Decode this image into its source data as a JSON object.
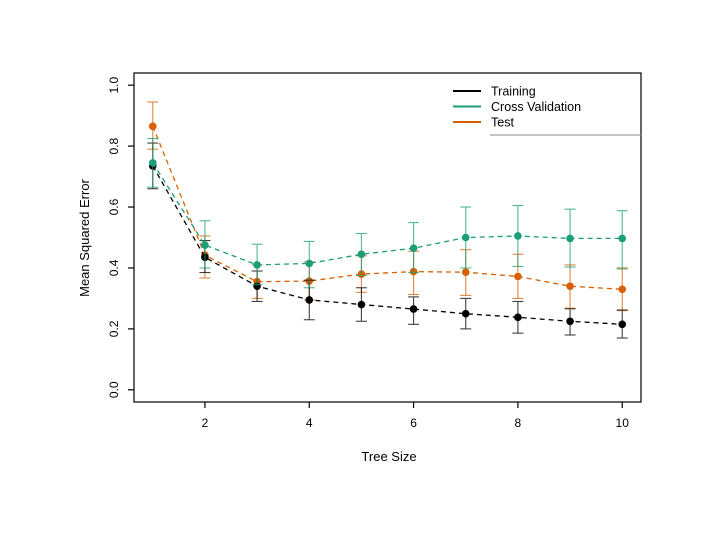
{
  "chart_data": {
    "type": "line",
    "title": "",
    "xlabel": "Tree Size",
    "ylabel": "Mean Squared Error",
    "x": [
      1,
      2,
      3,
      4,
      5,
      6,
      7,
      8,
      9,
      10
    ],
    "xticks": [
      "2",
      "4",
      "6",
      "8",
      "10"
    ],
    "xtick_values": [
      2,
      4,
      6,
      8,
      10
    ],
    "yticks": [
      "0.0",
      "0.2",
      "0.4",
      "0.6",
      "0.8",
      "1.0"
    ],
    "ytick_values": [
      0.0,
      0.2,
      0.4,
      0.6,
      0.8,
      1.0
    ],
    "xlim": [
      0.64,
      10.36
    ],
    "ylim": [
      -0.04,
      1.04
    ],
    "grid": false,
    "legend_position": "top-right",
    "line_style": "dashed",
    "marker": "filled-circle",
    "error_bars": true,
    "series": [
      {
        "name": "Test",
        "color": "#D95F02",
        "values": [
          0.865,
          0.442,
          0.355,
          0.357,
          0.38,
          0.388,
          0.386,
          0.372,
          0.34,
          0.33
        ],
        "err_lo": [
          0.79,
          0.367,
          0.3,
          0.295,
          0.32,
          0.313,
          0.31,
          0.3,
          0.268,
          0.26
        ],
        "err_hi": [
          0.945,
          0.505,
          0.41,
          0.42,
          0.44,
          0.455,
          0.46,
          0.445,
          0.41,
          0.4
        ]
      },
      {
        "name": "Training",
        "color": "#000000",
        "values": [
          0.735,
          0.435,
          0.34,
          0.295,
          0.28,
          0.265,
          0.25,
          0.238,
          0.225,
          0.215
        ],
        "err_lo": [
          0.66,
          0.385,
          0.29,
          0.23,
          0.225,
          0.215,
          0.2,
          0.186,
          0.18,
          0.17
        ],
        "err_hi": [
          0.81,
          0.49,
          0.39,
          0.36,
          0.335,
          0.305,
          0.3,
          0.29,
          0.266,
          0.262
        ]
      },
      {
        "name": "Cross Validation",
        "color": "#1B9E77",
        "values": [
          0.745,
          0.475,
          0.41,
          0.415,
          0.445,
          0.465,
          0.5,
          0.505,
          0.497,
          0.497
        ],
        "err_lo": [
          0.665,
          0.4,
          0.345,
          0.335,
          0.375,
          0.385,
          0.4,
          0.405,
          0.403,
          0.397
        ],
        "err_hi": [
          0.825,
          0.555,
          0.478,
          0.487,
          0.513,
          0.549,
          0.6,
          0.605,
          0.593,
          0.588
        ]
      }
    ],
    "legend_order": [
      "Training",
      "Cross Validation",
      "Test"
    ],
    "colors": {
      "box_stroke": "#000000",
      "legend_rule": "#888888",
      "background": "#ffffff"
    }
  }
}
